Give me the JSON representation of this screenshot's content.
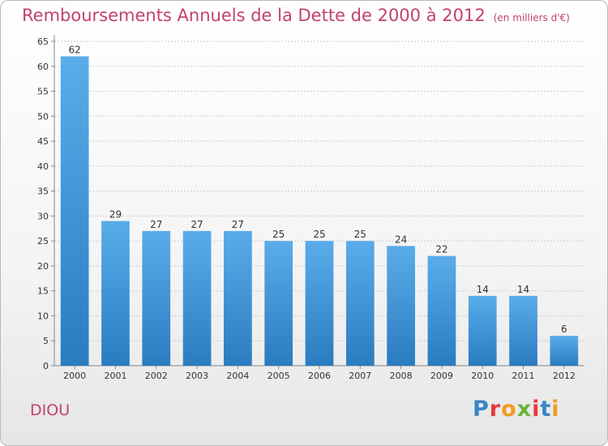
{
  "header": {
    "title": "Remboursements Annuels de la Dette de 2000 à 2012",
    "unit": "(en milliers d'€)"
  },
  "footer": {
    "commune": "DIOU",
    "logo_text": "Proxiti",
    "logo_letter_colors": [
      "#3a86c8",
      "#e8383d",
      "#f29a1f",
      "#6bb43a",
      "#e8383d",
      "#3a86c8",
      "#f29a1f"
    ]
  },
  "colors": {
    "bar_light": "#5aacea",
    "bar_dark": "#2a7cc0",
    "title": "#c24170",
    "grid": "#cccccc"
  },
  "chart_data": {
    "type": "bar",
    "title": "Remboursements Annuels de la Dette de 2000 à 2012",
    "categories": [
      "2000",
      "2001",
      "2002",
      "2003",
      "2004",
      "2005",
      "2006",
      "2007",
      "2008",
      "2009",
      "2010",
      "2011",
      "2012"
    ],
    "values": [
      62,
      29,
      27,
      27,
      27,
      25,
      25,
      25,
      24,
      22,
      14,
      14,
      6
    ],
    "ylim": [
      0,
      65
    ],
    "yticks": [
      0,
      5,
      10,
      15,
      20,
      25,
      30,
      35,
      40,
      45,
      50,
      55,
      60,
      65
    ],
    "grid": true,
    "data_labels": true
  }
}
